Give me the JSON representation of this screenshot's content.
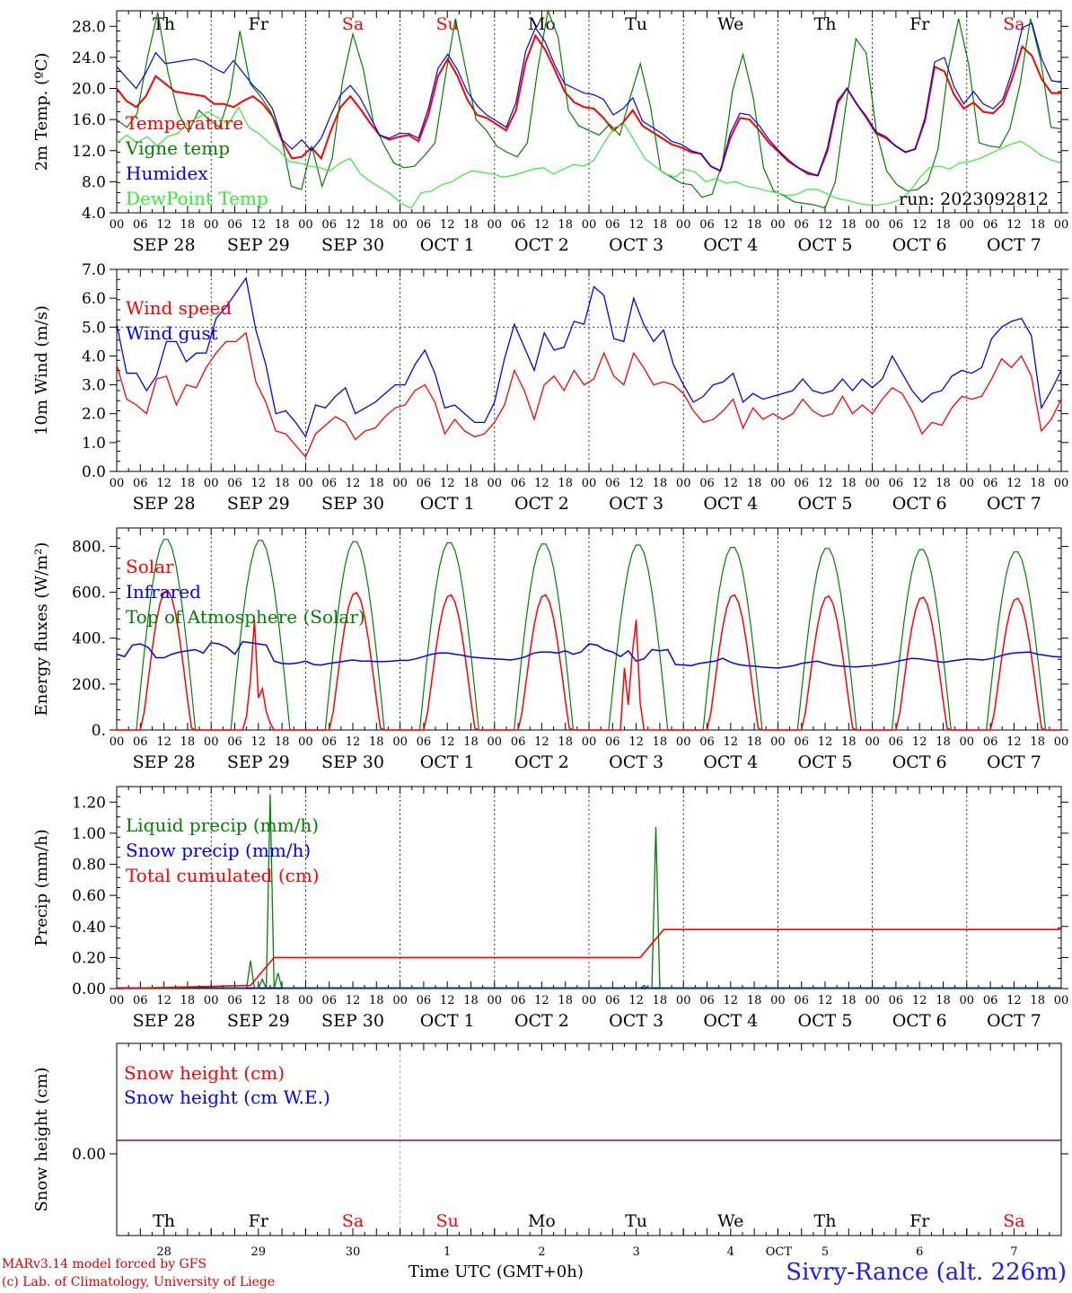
{
  "run_label": "run: 2023092812",
  "footer": {
    "model": "MARv3.14 model forced by GFS",
    "credit": "(c) Lab. of Climatology, University of Liege",
    "xaxis_title": "Time UTC (GMT+0h)",
    "station": "Sivry-Rance (alt. 226m)",
    "month_overlay": "OCT"
  },
  "colors": {
    "red": "#ff0000",
    "green": "#008000",
    "blue": "#0000ff",
    "lightgreen": "#33ee33",
    "purple": "#8800aa"
  },
  "day_names": [
    "Th",
    "Fr",
    "Sa",
    "Su",
    "Mo",
    "Tu",
    "We",
    "Th",
    "Fr",
    "Sa"
  ],
  "weekend_flags": [
    false,
    false,
    true,
    true,
    false,
    false,
    false,
    false,
    false,
    true
  ],
  "date_labels": [
    "SEP 28",
    "SEP 29",
    "SEP 30",
    "OCT  1",
    "OCT  2",
    "OCT  3",
    "OCT  4",
    "OCT  5",
    "OCT  6",
    "OCT  7"
  ],
  "day_numbers": [
    "28",
    "29",
    "30",
    "1",
    "2",
    "3",
    "4",
    "5",
    "6",
    "7"
  ],
  "hour_labels": [
    "00",
    "06",
    "12",
    "18"
  ],
  "chart_data": [
    {
      "type": "line",
      "ylabel": "2m Temp. (ºC)",
      "ylim": [
        4,
        30
      ],
      "yticks": [
        "4.0",
        "8.0",
        "12.0",
        "16.0",
        "20.0",
        "24.0",
        "28.0"
      ],
      "x_step_hours": 3,
      "series": [
        {
          "name": "Temperature",
          "color": "#ff0000",
          "values": [
            20.0,
            18.4,
            17.6,
            19.0,
            21.6,
            20.6,
            19.6,
            19.4,
            19.2,
            19.0,
            18.0,
            18.0,
            17.6,
            18.4,
            19.0,
            18.0,
            16.4,
            13.2,
            11.0,
            11.2,
            12.4,
            11.0,
            14.6,
            17.6,
            19.0,
            17.4,
            15.6,
            14.0,
            13.4,
            13.8,
            14.0,
            13.2,
            16.6,
            21.6,
            23.8,
            21.6,
            18.6,
            16.6,
            16.2,
            15.4,
            14.6,
            17.2,
            23.4,
            26.8,
            25.0,
            22.4,
            19.6,
            18.2,
            17.6,
            17.4,
            16.2,
            14.6,
            15.6,
            17.2,
            15.2,
            14.4,
            13.6,
            12.8,
            12.4,
            11.8,
            11.6,
            10.0,
            9.4,
            13.6,
            16.2,
            16.0,
            14.6,
            13.0,
            11.8,
            10.6,
            9.8,
            9.0,
            8.8,
            12.0,
            18.0,
            20.0,
            18.0,
            16.2,
            14.2,
            13.6,
            12.6,
            11.8,
            12.2,
            15.8,
            22.8,
            22.2,
            19.2,
            17.4,
            18.2,
            17.0,
            16.8,
            18.0,
            21.4,
            25.4,
            24.2,
            21.2,
            19.4,
            19.4
          ]
        },
        {
          "name": "Vigne temp",
          "color": "#008000",
          "values": [
            16.0,
            15.0,
            16.8,
            24.0,
            29.8,
            22.0,
            16.8,
            14.4,
            17.2,
            16.0,
            15.0,
            19.0,
            27.4,
            20.6,
            19.0,
            17.0,
            14.0,
            7.4,
            7.0,
            12.6,
            7.4,
            11.0,
            21.0,
            27.0,
            22.6,
            15.6,
            12.8,
            10.4,
            9.8,
            10.0,
            11.4,
            13.0,
            21.4,
            29.0,
            22.4,
            16.0,
            14.6,
            12.6,
            11.8,
            11.2,
            13.0,
            22.4,
            30.0,
            26.6,
            17.2,
            15.2,
            14.6,
            14.0,
            15.4,
            14.0,
            18.8,
            23.2,
            17.6,
            9.4,
            8.6,
            7.8,
            7.6,
            6.0,
            6.4,
            10.4,
            19.8,
            24.4,
            18.8,
            9.8,
            6.8,
            6.2,
            5.4,
            5.2,
            5.0,
            4.6,
            8.0,
            17.6,
            26.4,
            24.6,
            14.4,
            9.4,
            7.6,
            6.8,
            7.0,
            8.0,
            12.2,
            22.6,
            29.0,
            23.0,
            13.0,
            12.6,
            12.4,
            14.8,
            20.6,
            29.0,
            23.6,
            15.0,
            14.8
          ]
        },
        {
          "name": "Humidex",
          "color": "#0000ff",
          "values": [
            22.8,
            21.4,
            20.0,
            22.0,
            24.6,
            23.2,
            23.4,
            23.6,
            23.8,
            23.4,
            22.6,
            22.0,
            23.6,
            22.0,
            20.4,
            19.2,
            17.4,
            13.4,
            12.2,
            13.4,
            12.0,
            13.6,
            16.6,
            19.2,
            20.4,
            18.8,
            16.4,
            14.0,
            13.6,
            14.2,
            14.2,
            13.6,
            17.4,
            22.6,
            24.4,
            22.4,
            19.6,
            17.8,
            16.6,
            15.8,
            15.0,
            18.2,
            24.8,
            27.8,
            26.0,
            23.0,
            20.6,
            20.0,
            19.4,
            19.2,
            18.6,
            16.6,
            17.4,
            18.8,
            15.8,
            15.0,
            14.2,
            13.2,
            12.8,
            12.0,
            11.6,
            10.0,
            9.4,
            14.2,
            16.8,
            16.6,
            15.2,
            13.4,
            12.0,
            10.8,
            9.8,
            9.2,
            8.8,
            12.4,
            18.4,
            20.0,
            18.0,
            16.4,
            14.4,
            13.8,
            12.6,
            11.8,
            12.2,
            16.2,
            23.4,
            24.0,
            20.2,
            18.0,
            19.6,
            18.0,
            17.4,
            18.6,
            22.4,
            27.8,
            28.4,
            23.8,
            21.0,
            20.8
          ]
        },
        {
          "name": "DewPoint Temp",
          "color": "#33ee33",
          "values": [
            13.0,
            14.0,
            13.0,
            13.8,
            12.6,
            13.8,
            14.2,
            15.6,
            16.2,
            17.0,
            16.2,
            15.4,
            17.6,
            15.0,
            14.2,
            13.0,
            12.0,
            10.6,
            10.4,
            10.0,
            9.8,
            9.4,
            10.4,
            11.0,
            9.0,
            8.0,
            7.2,
            6.4,
            5.2,
            4.6,
            6.6,
            6.8,
            7.6,
            8.0,
            8.8,
            9.4,
            9.2,
            9.0,
            8.6,
            8.8,
            9.2,
            9.6,
            9.8,
            9.0,
            9.6,
            10.2,
            10.0,
            10.8,
            13.0,
            15.0,
            15.4,
            13.2,
            11.0,
            10.0,
            9.0,
            8.6,
            9.6,
            9.2,
            8.0,
            8.4,
            7.8,
            8.0,
            7.4,
            7.2,
            6.8,
            6.6,
            6.2,
            6.4,
            7.0,
            7.0,
            6.4,
            5.8,
            5.6,
            5.2,
            5.0,
            5.0,
            5.2,
            5.6,
            6.6,
            8.4,
            9.8,
            10.0,
            9.6,
            10.4,
            10.6,
            11.0,
            11.6,
            12.2,
            12.8,
            13.2,
            12.4,
            11.4,
            10.8,
            10.4
          ]
        }
      ]
    },
    {
      "type": "line",
      "ylabel": "10m Wind (m/s)",
      "ylim": [
        0,
        7
      ],
      "yticks": [
        "0.0",
        "1.0",
        "2.0",
        "3.0",
        "4.0",
        "5.0",
        "6.0",
        "7.0"
      ],
      "reference_line": 5.0,
      "x_step_hours": 3,
      "series": [
        {
          "name": "Wind speed",
          "color": "#ff0000",
          "values": [
            3.7,
            2.5,
            2.3,
            2.0,
            3.2,
            3.3,
            2.3,
            3.0,
            2.9,
            3.6,
            4.1,
            4.5,
            4.5,
            4.8,
            3.1,
            2.4,
            1.4,
            1.3,
            0.9,
            0.5,
            1.3,
            1.6,
            1.9,
            1.7,
            1.1,
            1.4,
            1.5,
            1.9,
            2.2,
            2.3,
            2.8,
            3.0,
            2.4,
            1.3,
            1.8,
            1.4,
            1.2,
            1.3,
            1.7,
            2.3,
            3.5,
            2.8,
            1.8,
            3.0,
            3.3,
            2.8,
            3.5,
            3.0,
            3.2,
            4.1,
            3.3,
            3.0,
            4.1,
            3.6,
            3.0,
            3.1,
            3.0,
            2.7,
            2.1,
            1.7,
            1.8,
            2.1,
            2.5,
            1.5,
            2.2,
            1.8,
            2.0,
            1.8,
            2.0,
            2.5,
            2.1,
            1.9,
            2.0,
            2.6,
            2.0,
            2.3,
            2.0,
            2.5,
            2.9,
            2.7,
            2.1,
            1.3,
            1.7,
            1.6,
            2.2,
            2.6,
            2.5,
            2.6,
            3.2,
            3.9,
            3.6,
            4.0,
            3.3,
            1.4,
            1.8,
            2.5
          ]
        },
        {
          "name": "Wind gust",
          "color": "#0000ff",
          "values": [
            5.1,
            3.4,
            3.4,
            2.8,
            3.3,
            4.5,
            4.5,
            3.8,
            4.1,
            4.1,
            5.3,
            5.7,
            6.2,
            6.7,
            4.9,
            3.7,
            2.0,
            2.1,
            1.7,
            1.2,
            2.3,
            2.2,
            2.6,
            2.9,
            2.0,
            2.2,
            2.4,
            2.7,
            3.0,
            3.0,
            3.7,
            4.2,
            3.4,
            2.2,
            2.3,
            2.0,
            1.7,
            1.7,
            2.4,
            3.9,
            5.1,
            4.3,
            3.5,
            4.8,
            4.2,
            4.3,
            5.2,
            5.1,
            6.4,
            6.1,
            4.6,
            4.5,
            6.0,
            5.1,
            4.5,
            4.9,
            3.7,
            3.0,
            2.4,
            2.6,
            3.0,
            3.1,
            3.4,
            2.4,
            2.7,
            2.5,
            2.6,
            2.7,
            2.8,
            3.2,
            2.8,
            2.7,
            2.8,
            3.2,
            2.8,
            3.2,
            2.9,
            3.2,
            4.0,
            3.4,
            2.8,
            2.4,
            2.7,
            2.8,
            3.3,
            3.5,
            3.4,
            3.6,
            4.6,
            5.0,
            5.2,
            5.3,
            4.7,
            2.2,
            2.8,
            3.5
          ]
        }
      ]
    },
    {
      "type": "line",
      "ylabel": "Energy fluxes (W/m²)",
      "ylim": [
        0,
        880
      ],
      "yticks": [
        "0.",
        "200.",
        "400.",
        "600.",
        "800."
      ],
      "x_step_hours": 1,
      "series": [
        {
          "name": "Solar",
          "color": "#ff0000",
          "values": []
        },
        {
          "name": "Infrared",
          "color": "#0000ff",
          "values": [
            330,
            320,
            370,
            375,
            360,
            315,
            315,
            330,
            340,
            345,
            350,
            335,
            380,
            375,
            360,
            330,
            385,
            380,
            375,
            370,
            300,
            290,
            288,
            292,
            300,
            285,
            283,
            290,
            295,
            300,
            305,
            300,
            300,
            298,
            298,
            300,
            303,
            303,
            310,
            320,
            330,
            335,
            335,
            330,
            325,
            318,
            315,
            312,
            310,
            308,
            305,
            310,
            320,
            335,
            340,
            340,
            335,
            345,
            330,
            340,
            375,
            370,
            350,
            340,
            320,
            345,
            300,
            310,
            350,
            345,
            350,
            285,
            283,
            280,
            290,
            295,
            300,
            312,
            295,
            285,
            280,
            278,
            275,
            272,
            270,
            275,
            280,
            290,
            295,
            300,
            290,
            282,
            278,
            276,
            275,
            278,
            280,
            285,
            290,
            298,
            305,
            312,
            310,
            305,
            300,
            295,
            300,
            305,
            310,
            308,
            305,
            310,
            320,
            330,
            335,
            338,
            340,
            330,
            325,
            320,
            318
          ]
        },
        {
          "name": "Top of Atmosphere (Solar)",
          "color": "#008000",
          "values": []
        }
      ],
      "toa_peaks": [
        835,
        830,
        825,
        820,
        815,
        810,
        800,
        795,
        790,
        780,
        770
      ],
      "solar_peaks": [
        610,
        0,
        600,
        590,
        590,
        0,
        590,
        585,
        580,
        575,
        555
      ],
      "solar_special": [
        {
          "day": 1,
          "values": [
            0,
            0,
            60,
            220,
            480,
            140,
            180,
            80,
            30,
            0
          ]
        },
        {
          "day": 5,
          "values": [
            0,
            0,
            270,
            110,
            330,
            480,
            120,
            0,
            0,
            0
          ]
        }
      ]
    },
    {
      "type": "line",
      "ylabel": "Precip (mm/h)",
      "ylim": [
        0,
        1.3
      ],
      "yticks": [
        "0.00",
        "0.20",
        "0.40",
        "0.60",
        "0.80",
        "1.00",
        "1.20"
      ],
      "series": [
        {
          "name": "Liquid precip (mm/h)",
          "color": "#008000",
          "spikes": [
            {
              "hour": 34,
              "value": 0.18
            },
            {
              "hour": 37,
              "value": 0.06
            },
            {
              "hour": 39,
              "value": 1.25
            },
            {
              "hour": 41,
              "value": 0.1
            },
            {
              "hour": 134,
              "value": 0.02
            },
            {
              "hour": 137,
              "value": 1.04
            }
          ]
        },
        {
          "name": "Snow precip (mm/h)",
          "color": "#0000ff",
          "values": [
            0
          ]
        },
        {
          "name": "Total cumulated (cm)",
          "color": "#ff0000",
          "steps": [
            {
              "hour": 0,
              "value": 0
            },
            {
              "hour": 34,
              "value": 0.02
            },
            {
              "hour": 40,
              "value": 0.2
            },
            {
              "hour": 133,
              "value": 0.2
            },
            {
              "hour": 139,
              "value": 0.38
            },
            {
              "hour": 240,
              "value": 0.38
            }
          ]
        }
      ]
    },
    {
      "type": "line",
      "ylabel": "Snow height (cm)",
      "yticks": [
        "0.00"
      ],
      "series": [
        {
          "name": "Snow height (cm)",
          "color": "#ff0000",
          "values": [
            0
          ]
        },
        {
          "name": "Snow height (cm W.E.)",
          "color": "#0000ff",
          "values": [
            0
          ]
        }
      ]
    }
  ]
}
